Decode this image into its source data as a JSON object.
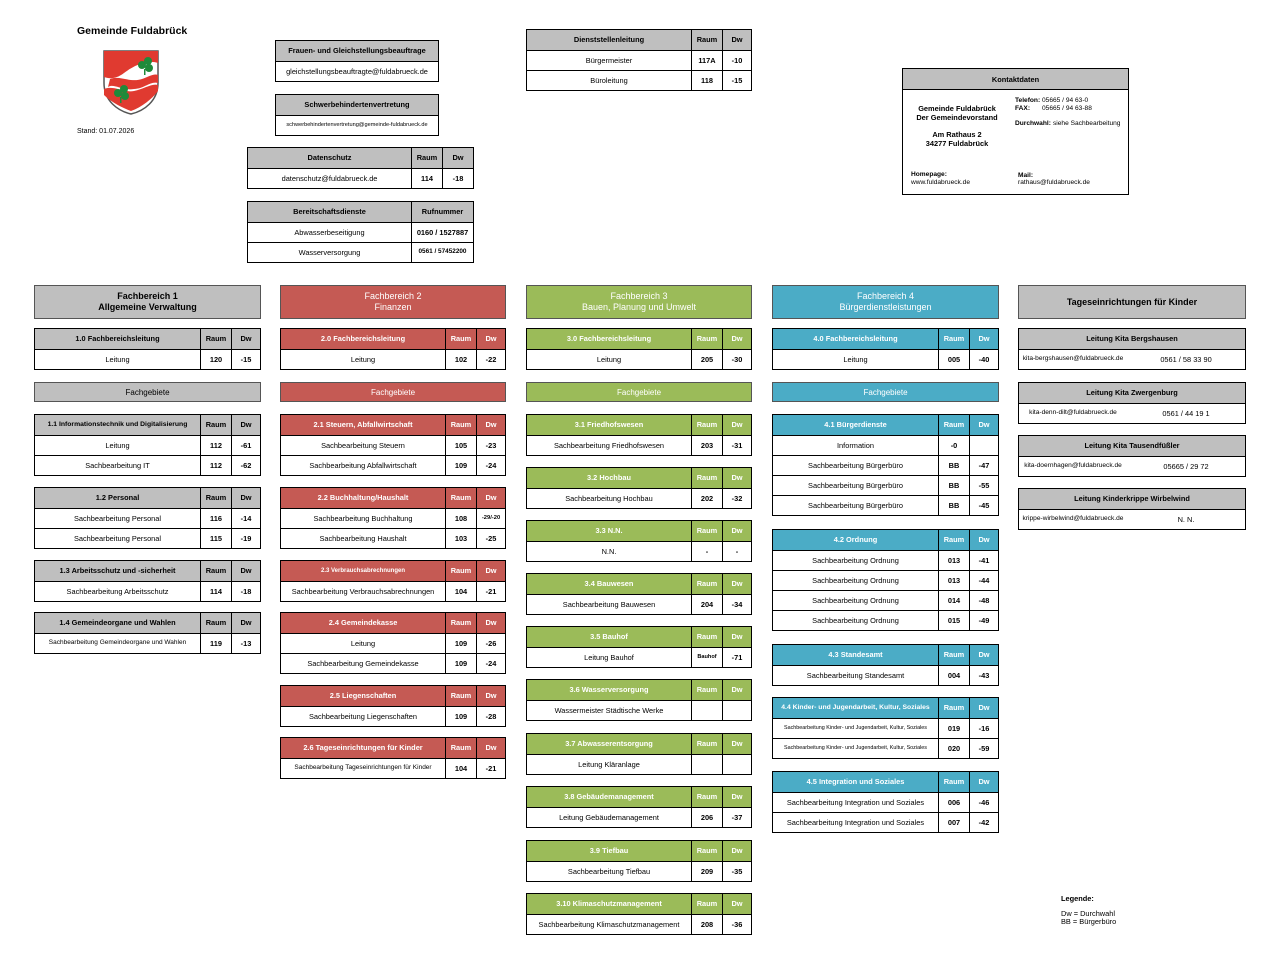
{
  "title": "Gemeinde Fuldabrück",
  "stand": "Stand: 01.07.2026",
  "colors": {
    "gray": "#bfbfbf",
    "red": "#c55a54",
    "green": "#9bbb59",
    "blue": "#4bacc6"
  },
  "gleich": {
    "title": "Frauen- und Gleichstellungsbeauftrage",
    "email": "gleichstellungsbeauftragte@fuldabrueck.de"
  },
  "schwer": {
    "title": "Schwerbehindertenvertretung",
    "email": "schwerbehindertenvertretung@gemeinde-fuldabrueck.de"
  },
  "daten": {
    "title": "Datenschutz",
    "raum": "Raum",
    "dw": "Dw",
    "email": "datenschutz@fuldabrueck.de",
    "raum_v": "114",
    "dw_v": "-18"
  },
  "bereit": {
    "title": "Bereitschaftsdienste",
    "col": "Rufnummer",
    "rows": [
      {
        "name": "Abwasserbeseitigung",
        "nr": "0160 / 1527887"
      },
      {
        "name": "Wasserversorgung",
        "nr": "0561 / 57452200"
      }
    ]
  },
  "dienst": {
    "title": "Dienststellenleitung",
    "raum": "Raum",
    "dw": "Dw",
    "rows": [
      {
        "name": "Bürgermeister",
        "raum": "117A",
        "dw": "-10"
      },
      {
        "name": "Büroleitung",
        "raum": "118",
        "dw": "-15"
      }
    ]
  },
  "kontakt": {
    "title": "Kontaktdaten",
    "name1": "Gemeinde Fuldabrück",
    "name2": "Der Gemeindevorstand",
    "addr1": "Am Rathaus 2",
    "addr2": "34277 Fuldabrück",
    "tel_label": "Telefon:",
    "tel": "05665 / 94 63-0",
    "fax_label": "FAX:",
    "fax": "05665 / 94 63-88",
    "dw_label": "Durchwahl:",
    "dw": "siehe Sachbearbeitung",
    "hp_label": "Homepage:",
    "hp": "www.fuldabrueck.de",
    "mail_label": "Mail:",
    "mail": "rathaus@fuldabrueck.de"
  },
  "fb": [
    {
      "l1": "Fachbereich 1",
      "l2": "Allgemeine Verwaltung"
    },
    {
      "l1": "Fachbereich 2",
      "l2": "Finanzen"
    },
    {
      "l1": "Fachbereich 3",
      "l2": "Bauen, Planung und Umwelt"
    },
    {
      "l1": "Fachbereich 4",
      "l2": "Bürgerdienstleistungen"
    },
    {
      "l1": "Tageseinrichtungen für Kinder",
      "l2": ""
    }
  ],
  "fachgebiete": "Fachgebiete",
  "col": {
    "raum": "Raum",
    "dw": "Dw"
  },
  "c1": [
    {
      "title": "1.0 Fachbereichsleitung",
      "rows": [
        {
          "n": "Leitung",
          "r": "120",
          "d": "-15"
        }
      ]
    },
    {
      "title": "1.1 Informationstechnik und Digitalisierung",
      "rows": [
        {
          "n": "Leitung",
          "r": "112",
          "d": "-61"
        },
        {
          "n": "Sachbearbeitung IT",
          "r": "112",
          "d": "-62"
        }
      ]
    },
    {
      "title": "1.2 Personal",
      "rows": [
        {
          "n": "Sachbearbeitung Personal",
          "r": "116",
          "d": "-14"
        },
        {
          "n": "Sachbearbeitung Personal",
          "r": "115",
          "d": "-19"
        }
      ]
    },
    {
      "title": "1.3 Arbeitsschutz und -sicherheit",
      "rows": [
        {
          "n": "Sachbearbeitung Arbeitsschutz",
          "r": "114",
          "d": "-18"
        }
      ]
    },
    {
      "title": "1.4 Gemeindeorgane und Wahlen",
      "rows": [
        {
          "n": "Sachbearbeitung Gemeindeorgane und Wahlen",
          "r": "119",
          "d": "-13"
        }
      ]
    }
  ],
  "c2": [
    {
      "title": "2.0 Fachbereichsleitung",
      "rows": [
        {
          "n": "Leitung",
          "r": "102",
          "d": "-22"
        }
      ]
    },
    {
      "title": "2.1 Steuern, Abfallwirtschaft",
      "rows": [
        {
          "n": "Sachbearbeitung Steuern",
          "r": "105",
          "d": "-23"
        },
        {
          "n": "Sachbearbeitung Abfallwirtschaft",
          "r": "109",
          "d": "-24"
        }
      ]
    },
    {
      "title": "2.2 Buchhaltung/Haushalt",
      "rows": [
        {
          "n": "Sachbearbeitung Buchhaltung",
          "r": "108",
          "d": "-29/-20"
        },
        {
          "n": "Sachbearbeitung Haushalt",
          "r": "103",
          "d": "-25"
        }
      ]
    },
    {
      "title": "2.3 Verbrauchsabrechnungen",
      "rows": [
        {
          "n": "Sachbearbeitung Verbrauchsabrechnungen",
          "r": "104",
          "d": "-21"
        }
      ]
    },
    {
      "title": "2.4 Gemeindekasse",
      "rows": [
        {
          "n": "Leitung",
          "r": "109",
          "d": "-26"
        },
        {
          "n": "Sachbearbeitung Gemeindekasse",
          "r": "109",
          "d": "-24"
        }
      ]
    },
    {
      "title": "2.5 Liegenschaften",
      "rows": [
        {
          "n": "Sachbearbeitung Liegenschaften",
          "r": "109",
          "d": "-28"
        }
      ]
    },
    {
      "title": "2.6 Tageseinrichtungen für Kinder",
      "rows": [
        {
          "n": "Sachbearbeitung Tageseinrichtungen für Kinder",
          "r": "104",
          "d": "-21"
        }
      ]
    }
  ],
  "c3": [
    {
      "title": "3.0 Fachbereichsleitung",
      "rows": [
        {
          "n": "Leitung",
          "r": "205",
          "d": "-30"
        }
      ]
    },
    {
      "title": "3.1 Friedhofswesen",
      "rows": [
        {
          "n": "Sachbearbeitung Friedhofswesen",
          "r": "203",
          "d": "-31"
        }
      ]
    },
    {
      "title": "3.2 Hochbau",
      "rows": [
        {
          "n": "Sachbearbeitung Hochbau",
          "r": "202",
          "d": "-32"
        }
      ]
    },
    {
      "title": "3.3 N.N.",
      "rows": [
        {
          "n": "N.N.",
          "r": "-",
          "d": "-"
        }
      ]
    },
    {
      "title": "3.4 Bauwesen",
      "rows": [
        {
          "n": "Sachbearbeitung Bauwesen",
          "r": "204",
          "d": "-34"
        }
      ]
    },
    {
      "title": "3.5 Bauhof",
      "rows": [
        {
          "n": "Leitung Bauhof",
          "r": "Bauhof",
          "d": "-71"
        }
      ]
    },
    {
      "title": "3.6 Wasserversorgung",
      "rows": [
        {
          "n": "Wassermeister Städtische Werke",
          "r": "",
          "d": ""
        }
      ]
    },
    {
      "title": "3.7 Abwasserentsorgung",
      "rows": [
        {
          "n": "Leitung Kläranlage",
          "r": "",
          "d": ""
        }
      ]
    },
    {
      "title": "3.8 Gebäudemanagement",
      "rows": [
        {
          "n": "Leitung Gebäudemanagement",
          "r": "206",
          "d": "-37"
        }
      ]
    },
    {
      "title": "3.9 Tiefbau",
      "rows": [
        {
          "n": "Sachbearbeitung Tiefbau",
          "r": "209",
          "d": "-35"
        }
      ]
    },
    {
      "title": "3.10 Klimaschutzmanagement",
      "rows": [
        {
          "n": "Sachbearbeitung Klimaschutzmanagement",
          "r": "208",
          "d": "-36"
        }
      ]
    }
  ],
  "c4": [
    {
      "title": "4.0 Fachbereichsleitung",
      "rows": [
        {
          "n": "Leitung",
          "r": "005",
          "d": "-40"
        }
      ]
    },
    {
      "title": "4.1 Bürgerdienste",
      "rows": [
        {
          "n": "Information",
          "r": "-0",
          "d": ""
        },
        {
          "n": "Sachbearbeitung Bürgerbüro",
          "r": "BB",
          "d": "-47"
        },
        {
          "n": "Sachbearbeitung Bürgerbüro",
          "r": "BB",
          "d": "-55"
        },
        {
          "n": "Sachbearbeitung Bürgerbüro",
          "r": "BB",
          "d": "-45"
        }
      ]
    },
    {
      "title": "4.2 Ordnung",
      "rows": [
        {
          "n": "Sachbearbeitung Ordnung",
          "r": "013",
          "d": "-41"
        },
        {
          "n": "Sachbearbeitung Ordnung",
          "r": "013",
          "d": "-44"
        },
        {
          "n": "Sachbearbeitung Ordnung",
          "r": "014",
          "d": "-48"
        },
        {
          "n": "Sachbearbeitung Ordnung",
          "r": "015",
          "d": "-49"
        }
      ]
    },
    {
      "title": "4.3 Standesamt",
      "rows": [
        {
          "n": "Sachbearbeitung Standesamt",
          "r": "004",
          "d": "-43"
        }
      ]
    },
    {
      "title": "4.4 Kinder- und Jugendarbeit, Kultur, Soziales",
      "rows": [
        {
          "n": "Sachbearbeitung Kinder- und Jugendarbeit, Kultur, Soziales",
          "r": "019",
          "d": "-16"
        },
        {
          "n": "Sachbearbeitung Kinder- und Jugendarbeit, Kultur, Soziales",
          "r": "020",
          "d": "-59"
        }
      ]
    },
    {
      "title": "4.5 Integration und Soziales",
      "rows": [
        {
          "n": "Sachbearbeitung Integration und Soziales",
          "r": "006",
          "d": "-46"
        },
        {
          "n": "Sachbearbeitung Integration und Soziales",
          "r": "007",
          "d": "-42"
        }
      ]
    }
  ],
  "kita": [
    {
      "title": "Leitung Kita Bergshausen",
      "email": "kita-bergshausen@fuldabrueck.de",
      "tel": "0561 / 58 33 90"
    },
    {
      "title": "Leitung Kita Zwergenburg",
      "email": "kita-denn-dilt@fuldabrueck.de",
      "tel": "0561 / 44 19 1"
    },
    {
      "title": "Leitung Kita Tausendfüßler",
      "email": "kita-doernhagen@fuldabrueck.de",
      "tel": "05665 / 29 72"
    },
    {
      "title": "Leitung Kinderkrippe Wirbelwind",
      "email": "krippe-wirbelwind@fuldabrueck.de",
      "tel": "N. N."
    }
  ],
  "legende": {
    "title": "Legende:",
    "l1": "Dw = Durchwahl",
    "l2": "BB = Bürgerbüro"
  }
}
